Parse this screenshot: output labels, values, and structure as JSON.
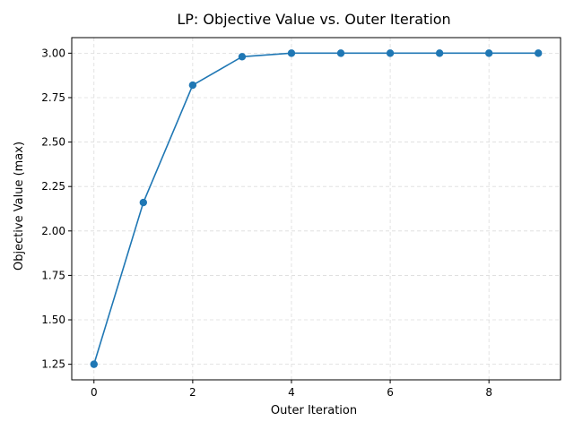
{
  "chart_data": {
    "type": "line",
    "title": "LP: Objective Value vs. Outer Iteration",
    "xlabel": "Outer Iteration",
    "ylabel": "Objective Value (max)",
    "x": [
      0,
      1,
      2,
      3,
      4,
      5,
      6,
      7,
      8,
      9
    ],
    "series": [
      {
        "values": [
          1.25,
          2.16,
          2.82,
          2.98,
          3.0,
          3.0,
          3.0,
          3.0,
          3.0,
          3.0
        ],
        "color": "#1f77b4",
        "marker": "circle"
      }
    ],
    "xlim": [
      -0.45,
      9.45
    ],
    "ylim": [
      1.1625,
      3.0875
    ],
    "xticks": [
      0,
      2,
      4,
      6,
      8
    ],
    "xtick_labels": [
      "0",
      "2",
      "4",
      "6",
      "8"
    ],
    "yticks": [
      1.25,
      1.5,
      1.75,
      2.0,
      2.25,
      2.5,
      2.75,
      3.0
    ],
    "ytick_labels": [
      "1.25",
      "1.50",
      "1.75",
      "2.00",
      "2.25",
      "2.50",
      "2.75",
      "3.00"
    ],
    "grid": true,
    "grid_style": "dashed",
    "legend": false
  }
}
